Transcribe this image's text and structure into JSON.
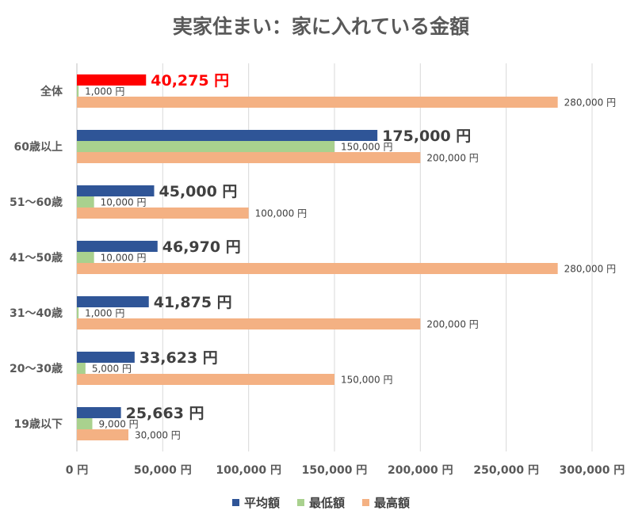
{
  "chart_data": {
    "type": "bar",
    "orientation": "horizontal",
    "title": "実家住まい：家に入れている金額",
    "categories": [
      "全体",
      "60歳以上",
      "51〜60歳",
      "41〜50歳",
      "31〜40歳",
      "20〜30歳",
      "19歳以下"
    ],
    "series": [
      {
        "name": "平均額",
        "color": "#2F5597",
        "values": [
          40275,
          175000,
          45000,
          46970,
          41875,
          33623,
          25663
        ],
        "labels": [
          "40,275 円",
          "175,000 円",
          "45,000 円",
          "46,970 円",
          "41,875 円",
          "33,623 円",
          "25,663 円"
        ]
      },
      {
        "name": "最低額",
        "color": "#A9D18E",
        "values": [
          1000,
          150000,
          10000,
          10000,
          1000,
          5000,
          9000
        ],
        "labels": [
          "1,000 円",
          "150,000 円",
          "10,000 円",
          "10,000 円",
          "1,000 円",
          "5,000 円",
          "9,000 円"
        ]
      },
      {
        "name": "最高額",
        "color": "#F4B183",
        "values": [
          280000,
          200000,
          100000,
          280000,
          200000,
          150000,
          30000
        ],
        "labels": [
          "280,000 円",
          "200,000 円",
          "100,000 円",
          "280,000 円",
          "200,000 円",
          "150,000 円",
          "30,000 円"
        ]
      }
    ],
    "highlight": {
      "category": "全体",
      "series": "平均額",
      "color": "#FF0000"
    },
    "xlim": [
      0,
      300000
    ],
    "xticks": [
      0,
      50000,
      100000,
      150000,
      200000,
      250000,
      300000
    ],
    "xtick_labels": [
      "0 円",
      "50,000 円",
      "100,000 円",
      "150,000 円",
      "200,000 円",
      "250,000 円",
      "300,000 円"
    ],
    "grid": true,
    "legend_position": "bottom"
  }
}
